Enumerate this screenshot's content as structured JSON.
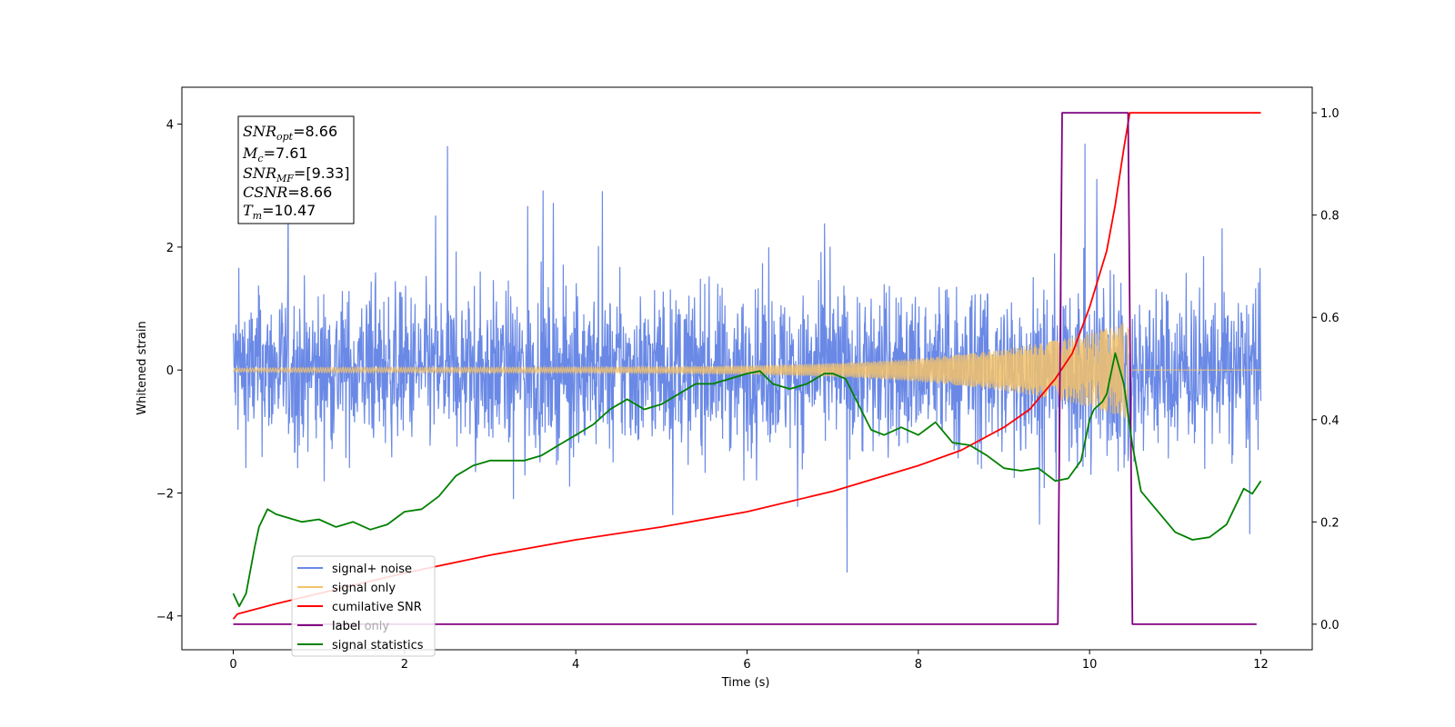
{
  "chart_data": {
    "type": "line",
    "xlabel": "Time (s)",
    "ylabel": "Whitened strain",
    "xlim": [
      -0.6,
      12.6
    ],
    "ylim": [
      -4.55,
      4.6
    ],
    "y2lim": [
      -0.05,
      1.05
    ],
    "x_ticks": [
      0,
      2,
      4,
      6,
      8,
      10,
      12
    ],
    "y_ticks": [
      -4,
      -2,
      0,
      2,
      4
    ],
    "y2_ticks": [
      0.0,
      0.2,
      0.4,
      0.6,
      0.8,
      1.0
    ],
    "x_tick_labels": [
      "0",
      "2",
      "4",
      "6",
      "8",
      "10",
      "12"
    ],
    "y_tick_labels": [
      "−4",
      "−2",
      "0",
      "2",
      "4"
    ],
    "y2_tick_labels": [
      "0.0",
      "0.2",
      "0.4",
      "0.6",
      "0.8",
      "1.0"
    ],
    "info_box": {
      "snr_opt": {
        "main": "SNR",
        "sub": "opt",
        "value": "=8.66"
      },
      "mc": {
        "main": "M",
        "sub": "c",
        "value": "=7.61"
      },
      "snr_mf": {
        "main": "SNR",
        "sub": "MF",
        "value": "=[9.33]"
      },
      "csnr": {
        "main": "CSNR",
        "sub": "",
        "value": "=8.66"
      },
      "tm": {
        "main": "T",
        "sub": "m",
        "value": "=10.47"
      }
    },
    "legend_position": "lower-left",
    "series": [
      {
        "name": "signal+ noise",
        "color": "#6a89e6",
        "axis": "left",
        "description": "noise trace, approx +/-2 with spikes to ~4, x 0-12"
      },
      {
        "name": "signal only",
        "color": "#f4c36a",
        "axis": "left",
        "description": "chirp, amplitude ~0.03 growing to ~0.7 at 10.47s, zero after"
      },
      {
        "name": "cumilative SNR",
        "color": "#ff0000",
        "axis": "right",
        "x": [
          0,
          0.05,
          0.5,
          1,
          2,
          3,
          4,
          5,
          6,
          7,
          8,
          8.5,
          9,
          9.3,
          9.6,
          9.8,
          10,
          10.2,
          10.3,
          10.4,
          10.47,
          10.5,
          12
        ],
        "values": [
          0.01,
          0.02,
          0.04,
          0.06,
          0.1,
          0.135,
          0.165,
          0.19,
          0.22,
          0.26,
          0.31,
          0.34,
          0.385,
          0.42,
          0.48,
          0.53,
          0.62,
          0.73,
          0.82,
          0.93,
          1.0,
          1.0,
          1.0
        ]
      },
      {
        "name": "label",
        "color": "#800080",
        "axis": "right",
        "x": [
          0,
          9.63,
          9.68,
          10.45,
          10.5,
          11.95
        ],
        "values": [
          0,
          0,
          1,
          1,
          0,
          0
        ]
      },
      {
        "name": "label only",
        "color": "#ffffff",
        "axis": "right",
        "description": "legend entry partially covered"
      },
      {
        "name": "signal statistics",
        "color": "#008000",
        "axis": "right",
        "x": [
          0,
          0.07,
          0.15,
          0.25,
          0.3,
          0.4,
          0.5,
          0.7,
          0.8,
          1.0,
          1.2,
          1.4,
          1.6,
          1.8,
          2.0,
          2.2,
          2.4,
          2.6,
          2.8,
          3.0,
          3.2,
          3.4,
          3.6,
          3.8,
          4.0,
          4.2,
          4.4,
          4.6,
          4.8,
          5.0,
          5.2,
          5.4,
          5.6,
          5.8,
          6.0,
          6.15,
          6.3,
          6.5,
          6.7,
          6.9,
          7.0,
          7.15,
          7.3,
          7.45,
          7.6,
          7.8,
          8.0,
          8.2,
          8.4,
          8.6,
          8.8,
          9.0,
          9.2,
          9.4,
          9.6,
          9.75,
          9.9,
          10.0,
          10.05,
          10.15,
          10.2,
          10.3,
          10.4,
          10.5,
          10.6,
          10.8,
          11.0,
          11.2,
          11.4,
          11.6,
          11.8,
          11.9,
          12.0
        ],
        "values": [
          0.06,
          0.035,
          0.06,
          0.15,
          0.19,
          0.225,
          0.215,
          0.205,
          0.2,
          0.205,
          0.19,
          0.2,
          0.185,
          0.195,
          0.22,
          0.225,
          0.25,
          0.29,
          0.31,
          0.32,
          0.32,
          0.32,
          0.33,
          0.35,
          0.37,
          0.39,
          0.42,
          0.44,
          0.42,
          0.43,
          0.45,
          0.47,
          0.47,
          0.48,
          0.49,
          0.495,
          0.47,
          0.46,
          0.47,
          0.49,
          0.49,
          0.48,
          0.43,
          0.38,
          0.37,
          0.385,
          0.37,
          0.395,
          0.355,
          0.35,
          0.33,
          0.305,
          0.3,
          0.305,
          0.28,
          0.285,
          0.32,
          0.4,
          0.42,
          0.435,
          0.45,
          0.53,
          0.47,
          0.35,
          0.26,
          0.22,
          0.18,
          0.165,
          0.17,
          0.195,
          0.265,
          0.255,
          0.28
        ]
      }
    ]
  }
}
